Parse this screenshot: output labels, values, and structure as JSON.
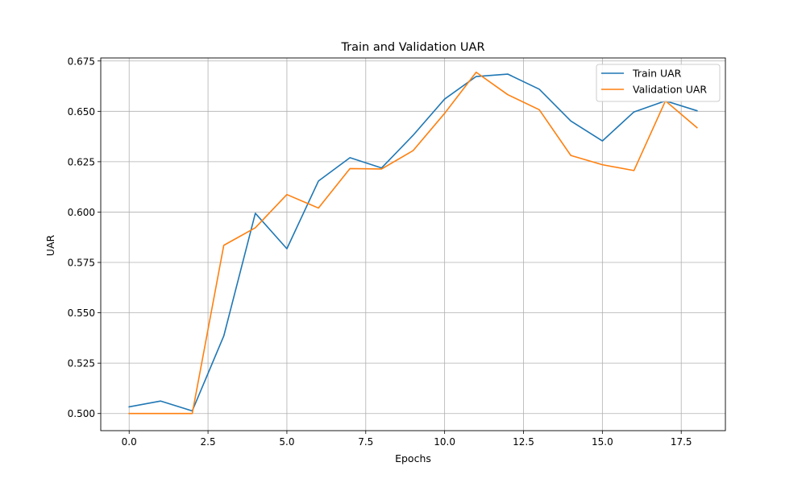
{
  "chart_data": {
    "type": "line",
    "title": "Train and Validation UAR",
    "xlabel": "Epochs",
    "ylabel": "UAR",
    "xlim": [
      -0.9,
      18.9
    ],
    "ylim": [
      0.4915,
      0.6765
    ],
    "xticks": [
      0.0,
      2.5,
      5.0,
      7.5,
      10.0,
      12.5,
      15.0,
      17.5
    ],
    "xtick_labels": [
      "0.0",
      "2.5",
      "5.0",
      "7.5",
      "10.0",
      "12.5",
      "15.0",
      "17.5"
    ],
    "yticks": [
      0.5,
      0.525,
      0.55,
      0.575,
      0.6,
      0.625,
      0.65,
      0.675
    ],
    "ytick_labels": [
      "0.500",
      "0.525",
      "0.550",
      "0.575",
      "0.600",
      "0.625",
      "0.650",
      "0.675"
    ],
    "grid": true,
    "legend_position": "top-right",
    "x": [
      0,
      1,
      2,
      3,
      4,
      5,
      6,
      7,
      8,
      9,
      10,
      11,
      12,
      13,
      14,
      15,
      16,
      17,
      18
    ],
    "series": [
      {
        "name": "Train UAR",
        "color": "#1f77b4",
        "values": [
          0.5033,
          0.5062,
          0.5013,
          0.5385,
          0.5994,
          0.5818,
          0.6154,
          0.627,
          0.6219,
          0.6381,
          0.6561,
          0.6673,
          0.6685,
          0.661,
          0.6452,
          0.6353,
          0.6497,
          0.6552,
          0.6503
        ]
      },
      {
        "name": "Validation UAR",
        "color": "#ff7f0e",
        "values": [
          0.5,
          0.5,
          0.5,
          0.5835,
          0.5922,
          0.6087,
          0.602,
          0.6216,
          0.6214,
          0.6305,
          0.649,
          0.6694,
          0.6583,
          0.6508,
          0.6281,
          0.6235,
          0.6206,
          0.6552,
          0.6419
        ]
      }
    ]
  }
}
